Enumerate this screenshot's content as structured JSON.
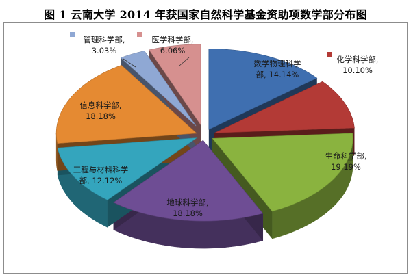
{
  "title": "图 1  云南大学 2014 年获国家自然科学基金资助项数学部分布图",
  "chart_data": {
    "type": "pie",
    "style": "3d-exploded",
    "legend": "none",
    "slices": [
      {
        "name": "数学物理科学部",
        "value": 14.14,
        "label": "14.14%",
        "color": "#3f6fb0"
      },
      {
        "name": "化学科学部",
        "value": 10.1,
        "label": "10.10%",
        "color": "#b33a36"
      },
      {
        "name": "生命科学部",
        "value": 19.19,
        "label": "19.19%",
        "color": "#8ab33f"
      },
      {
        "name": "地球科学部",
        "value": 18.18,
        "label": "18.18%",
        "color": "#6e4d94"
      },
      {
        "name": "工程与材料科学部",
        "value": 12.12,
        "label": "12.12%",
        "color": "#34a5bd"
      },
      {
        "name": "信息科学部",
        "value": 18.18,
        "label": "18.18%",
        "color": "#e58a32"
      },
      {
        "name": "管理科学部",
        "value": 3.03,
        "label": "3.03%",
        "color": "#8fa8d4"
      },
      {
        "name": "医学科学部",
        "value": 6.06,
        "label": "6.06%",
        "color": "#d6908f"
      }
    ]
  }
}
